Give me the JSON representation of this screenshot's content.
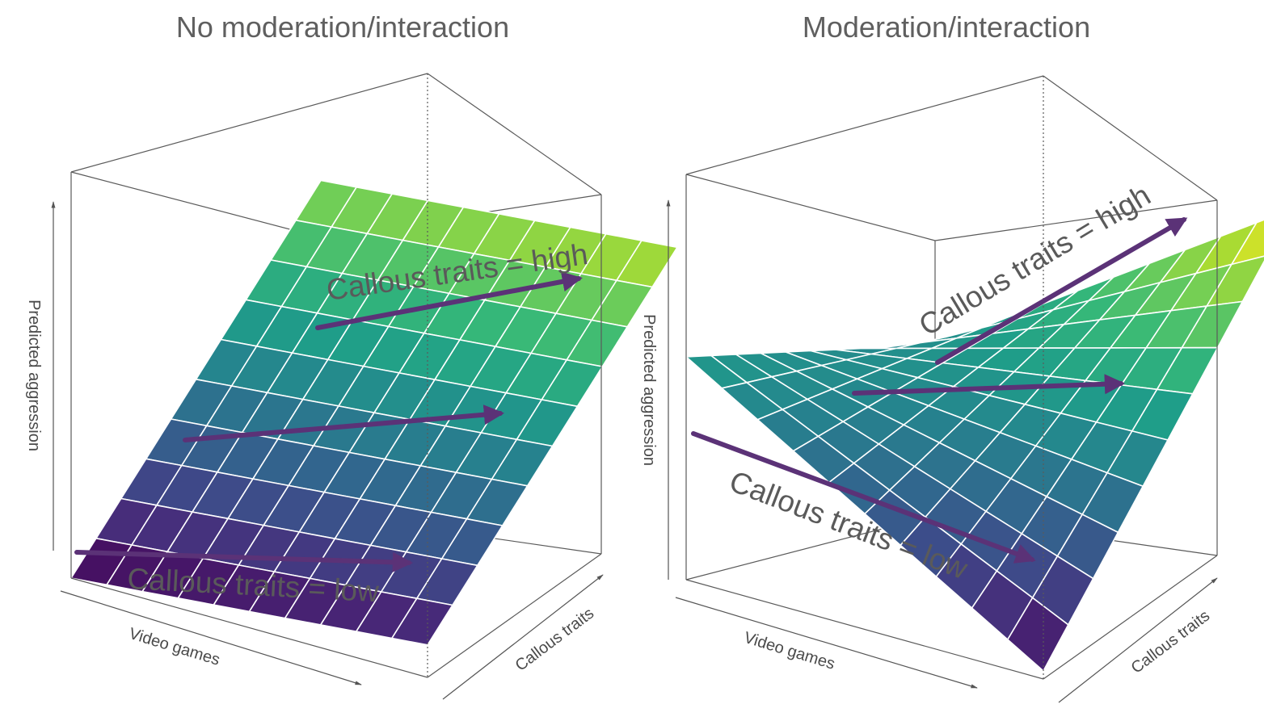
{
  "chart_data": [
    {
      "type": "surface",
      "title": "No moderation/interaction",
      "xlabel": "Video games",
      "ylabel": "Callous traits",
      "zlabel": "Predicted aggression",
      "grid": true,
      "colormap": "viridis",
      "grid_cells": [
        10,
        10
      ],
      "x_range": [
        0,
        1
      ],
      "y_range": [
        0,
        1
      ],
      "z_range": [
        0,
        1
      ],
      "surface": {
        "z_at_low_low": 0.0,
        "z_at_high_low": 0.08,
        "z_at_low_high": 0.82,
        "z_at_high_high": 0.9
      },
      "annotations": [
        {
          "text": "Callous traits = high",
          "slope_label": "high"
        },
        {
          "text": "Callous traits = low",
          "slope_label": "low"
        }
      ]
    },
    {
      "type": "surface",
      "title": "Moderation/interaction",
      "xlabel": "Video games",
      "ylabel": "Callous traits",
      "zlabel": "Predicted aggression",
      "grid": true,
      "colormap": "viridis",
      "grid_cells": [
        10,
        10
      ],
      "x_range": [
        0,
        1
      ],
      "y_range": [
        0,
        1
      ],
      "z_range": [
        0,
        1
      ],
      "surface": {
        "z_at_low_low": 0.55,
        "z_at_high_low": 0.02,
        "z_at_low_high": 0.42,
        "z_at_high_high": 1.0
      },
      "annotations": [
        {
          "text": "Callous traits = high",
          "slope_label": "high"
        },
        {
          "text": "Callous traits = low",
          "slope_label": "low"
        }
      ]
    }
  ]
}
